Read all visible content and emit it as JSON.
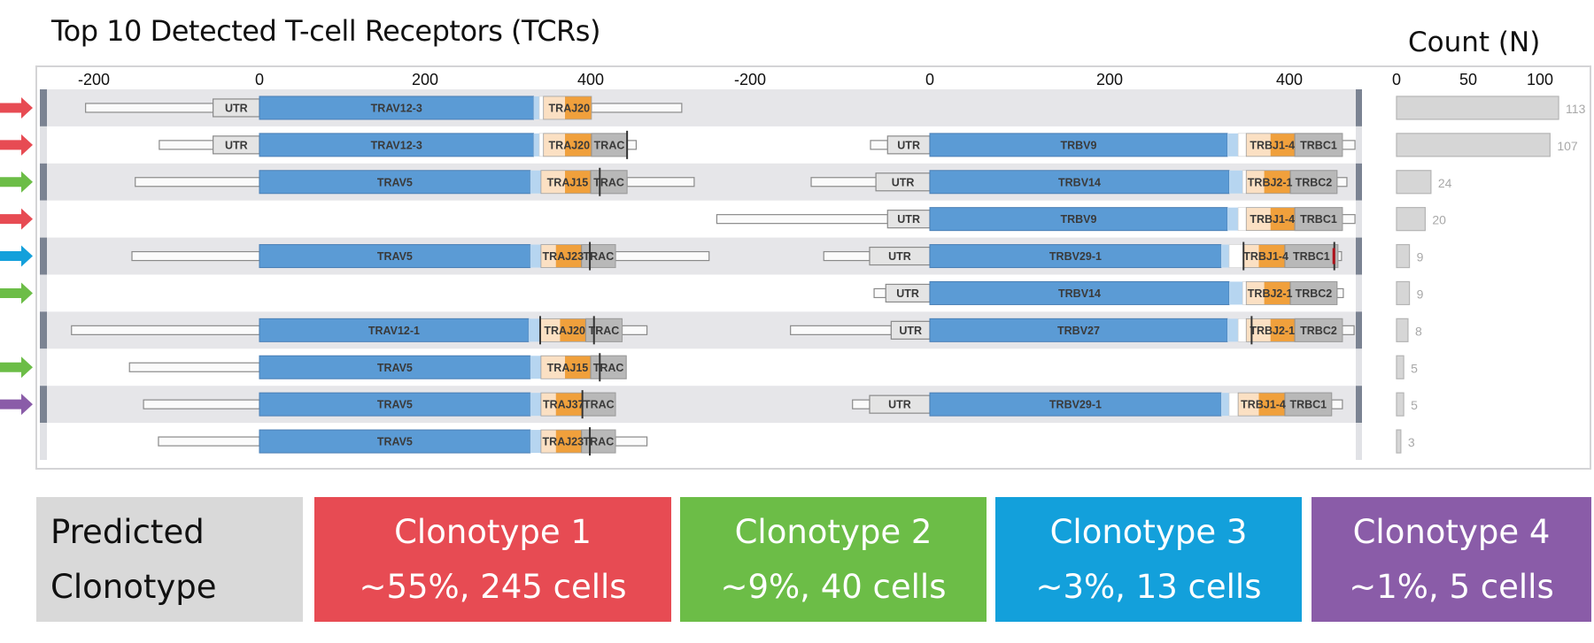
{
  "title": "Top 10 Detected T-cell Receptors (TCRs)",
  "count_title": "Count (N)",
  "colors": {
    "v_gene": "#5b9bd5",
    "v_end": "#b6d5f0",
    "d_region": "#fbe0c3",
    "j_gene": "#f0a03c",
    "c_gene": "#b8b8b8",
    "utr": "#e4e4e4",
    "band": "#e6e6e9",
    "row_marker": "#7b8392",
    "count_bar": "#d6d6d6",
    "clonotype_1": "#e74b53",
    "clonotype_2": "#6cbd47",
    "clonotype_3": "#13a0db",
    "clonotype_4": "#8a5ca8",
    "predicted_box": "#d9d9d9"
  },
  "chart_data": {
    "type": "table",
    "title": "Top 10 Detected T-cell Receptors (TCRs)",
    "alpha_axis": {
      "ticks": [
        -200,
        0,
        200,
        400
      ],
      "range": [
        -230,
        550
      ]
    },
    "beta_axis": {
      "ticks": [
        -200,
        0,
        200,
        400
      ],
      "range": [
        -245,
        480
      ]
    },
    "count_axis": {
      "title": "Count (N)",
      "ticks": [
        0,
        50,
        100
      ],
      "range": [
        0,
        120
      ]
    },
    "rows": [
      {
        "clonotype": 1,
        "count": 113,
        "alpha": {
          "tail_start": -210,
          "utr": [
            -56,
            0
          ],
          "v": [
            0,
            331
          ],
          "v_label": "TRAV12-3",
          "v_end": 338,
          "d": [
            343,
            369
          ],
          "j": [
            369,
            401
          ],
          "j_label": "TRAJ20",
          "c": null,
          "c_label": "",
          "tail_end": 510,
          "marks": []
        },
        "beta": null
      },
      {
        "clonotype": 1,
        "count": 107,
        "alpha": {
          "tail_start": -121,
          "utr": [
            -56,
            0
          ],
          "v": [
            0,
            331
          ],
          "v_label": "TRAV12-3",
          "v_end": 338,
          "d": [
            343,
            369
          ],
          "j": [
            369,
            401
          ],
          "j_label": "TRAJ20",
          "c": [
            401,
            444
          ],
          "c_label": "TRAC",
          "tail_end": 455,
          "marks": [
            444
          ]
        },
        "beta": {
          "tail_start": -66,
          "utr": [
            -47,
            0
          ],
          "v": [
            0,
            331
          ],
          "v_label": "TRBV9",
          "v_end": 343,
          "d": [
            352,
            379
          ],
          "j": [
            379,
            406
          ],
          "j_label": "TRBJ1-4",
          "c": [
            406,
            459
          ],
          "c_label": "TRBC1",
          "tail_end": 473,
          "marks": []
        }
      },
      {
        "clonotype": 2,
        "count": 24,
        "alpha": {
          "tail_start": -150,
          "utr": null,
          "v": [
            0,
            327
          ],
          "v_label": "TRAV5",
          "v_end": 340,
          "d": [
            340,
            369
          ],
          "j": [
            369,
            400
          ],
          "j_label": "TRAJ15",
          "c": [
            400,
            444
          ],
          "c_label": "TRAC",
          "tail_end": 525,
          "marks": [
            411
          ]
        },
        "beta": {
          "tail_start": -132,
          "utr": [
            -60,
            0
          ],
          "v": [
            0,
            333
          ],
          "v_label": "TRBV14",
          "v_end": 348,
          "d": [
            352,
            372
          ],
          "j": [
            372,
            401
          ],
          "j_label": "TRBJ2-1",
          "c": [
            401,
            453
          ],
          "c_label": "TRBC2",
          "tail_end": 464,
          "marks": []
        }
      },
      {
        "clonotype": 1,
        "count": 20,
        "alpha": null,
        "beta": {
          "tail_start": -237,
          "utr": [
            -47,
            0
          ],
          "v": [
            0,
            331
          ],
          "v_label": "TRBV9",
          "v_end": 343,
          "d": [
            352,
            379
          ],
          "j": [
            379,
            406
          ],
          "j_label": "TRBJ1-4",
          "c": [
            406,
            459
          ],
          "c_label": "TRBC1",
          "tail_end": 473,
          "marks": []
        }
      },
      {
        "clonotype": 3,
        "count": 9,
        "alpha": {
          "tail_start": -154,
          "utr": null,
          "v": [
            0,
            327
          ],
          "v_label": "TRAV5",
          "v_end": 340,
          "d": [
            340,
            358
          ],
          "j": [
            358,
            389
          ],
          "j_label": "TRAJ23",
          "c": [
            389,
            430
          ],
          "c_label": "TRAC",
          "tail_end": 543,
          "marks": [
            399
          ]
        },
        "beta": {
          "tail_start": -118,
          "utr": [
            -67,
            0
          ],
          "v": [
            0,
            324
          ],
          "v_label": "TRBV29-1",
          "v_end": 333,
          "d": [
            349,
            366
          ],
          "j": [
            366,
            395
          ],
          "j_label": "TRBJ1-4",
          "c": [
            395,
            454
          ],
          "c_label": "TRBC1",
          "tail_end": 458,
          "marks": [
            349,
            450
          ]
        }
      },
      {
        "clonotype": 2,
        "count": 9,
        "alpha": null,
        "beta": {
          "tail_start": -62,
          "utr": [
            -49,
            0
          ],
          "v": [
            0,
            333
          ],
          "v_label": "TRBV14",
          "v_end": 348,
          "d": [
            352,
            372
          ],
          "j": [
            372,
            401
          ],
          "j_label": "TRBJ2-1",
          "c": [
            401,
            453
          ],
          "c_label": "TRBC2",
          "tail_end": 460,
          "marks": []
        }
      },
      {
        "clonotype": null,
        "count": 8,
        "alpha": {
          "tail_start": -227,
          "utr": null,
          "v": [
            0,
            325
          ],
          "v_label": "TRAV12-1",
          "v_end": 339,
          "d": [
            339,
            363
          ],
          "j": [
            363,
            394
          ],
          "j_label": "TRAJ20",
          "c": [
            394,
            438
          ],
          "c_label": "TRAC",
          "tail_end": 468,
          "marks": [
            339,
            404
          ]
        },
        "beta": {
          "tail_start": -155,
          "utr": [
            -43,
            0
          ],
          "v": [
            0,
            331
          ],
          "v_label": "TRBV27",
          "v_end": 343,
          "d": [
            352,
            379
          ],
          "j": [
            379,
            406
          ],
          "j_label": "TRBJ2-1",
          "c": [
            406,
            459
          ],
          "c_label": "TRBC2",
          "tail_end": 472,
          "marks": [
            358
          ]
        }
      },
      {
        "clonotype": 2,
        "count": 5,
        "alpha": {
          "tail_start": -157,
          "utr": null,
          "v": [
            0,
            327
          ],
          "v_label": "TRAV5",
          "v_end": 340,
          "d": [
            340,
            369
          ],
          "j": [
            369,
            400
          ],
          "j_label": "TRAJ15",
          "c": [
            400,
            443
          ],
          "c_label": "TRAC",
          "tail_end": 443,
          "marks": [
            411
          ]
        },
        "beta": null
      },
      {
        "clonotype": 4,
        "count": 5,
        "alpha": {
          "tail_start": -140,
          "utr": null,
          "v": [
            0,
            327
          ],
          "v_label": "TRAV5",
          "v_end": 340,
          "d": [
            340,
            358
          ],
          "j": [
            358,
            390
          ],
          "j_label": "TRAJ37",
          "c": [
            390,
            430
          ],
          "c_label": "TRAC",
          "tail_end": 430,
          "marks": [
            390
          ]
        },
        "beta": {
          "tail_start": -86,
          "utr": [
            -67,
            0
          ],
          "v": [
            0,
            324
          ],
          "v_label": "TRBV29-1",
          "v_end": 333,
          "d": [
            343,
            366
          ],
          "j": [
            366,
            395
          ],
          "j_label": "TRBJ1-4",
          "c": [
            395,
            447
          ],
          "c_label": "TRBC1",
          "tail_end": 459,
          "marks": []
        }
      },
      {
        "clonotype": null,
        "count": 3,
        "alpha": {
          "tail_start": -122,
          "utr": null,
          "v": [
            0,
            327
          ],
          "v_label": "TRAV5",
          "v_end": 340,
          "d": [
            340,
            358
          ],
          "j": [
            358,
            389
          ],
          "j_label": "TRAJ23",
          "c": [
            389,
            430
          ],
          "c_label": "TRAC",
          "tail_end": 468,
          "marks": [
            399
          ]
        },
        "beta": null
      }
    ],
    "utr_label": "UTR"
  },
  "clonotype_boxes": {
    "predicted": {
      "line1": "Predicted",
      "line2": "Clonotype"
    },
    "items": [
      {
        "line1": "Clonotype 1",
        "line2": "~55%, 245 cells",
        "color_key": "clonotype_1"
      },
      {
        "line1": "Clonotype 2",
        "line2": "~9%,  40 cells",
        "color_key": "clonotype_2"
      },
      {
        "line1": "Clonotype 3",
        "line2": "~3%, 13 cells",
        "color_key": "clonotype_3"
      },
      {
        "line1": "Clonotype 4",
        "line2": "~1%, 5 cells",
        "color_key": "clonotype_4"
      }
    ]
  }
}
